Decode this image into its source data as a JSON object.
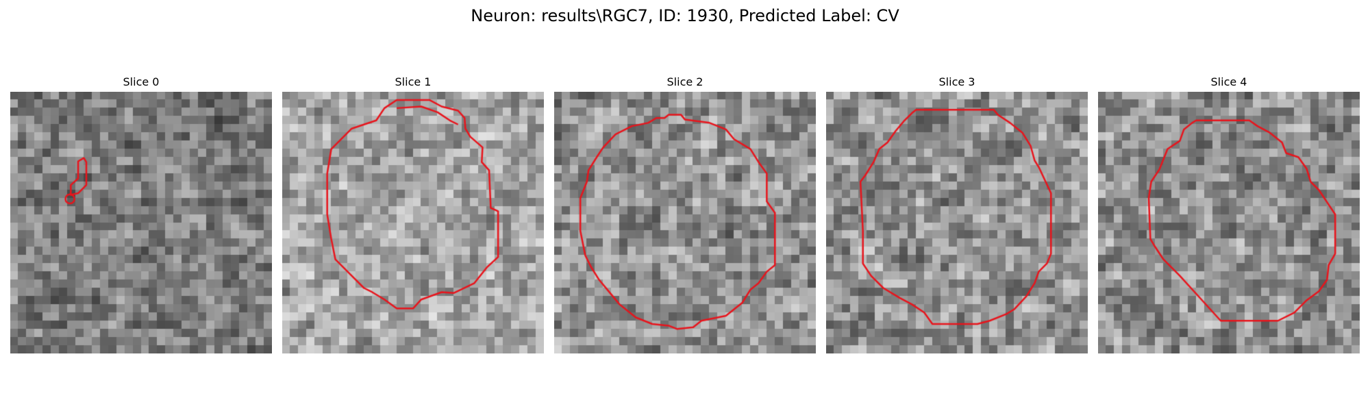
{
  "figure": {
    "title": "Neuron: results\\RGC7, ID: 1930, Predicted Label: CV",
    "outline_color": "#e8141c"
  },
  "slices": [
    {
      "title": "Slice 0",
      "tone": "dark",
      "seed": 11
    },
    {
      "title": "Slice 1",
      "tone": "light",
      "seed": 23
    },
    {
      "title": "Slice 2",
      "tone": "mid",
      "seed": 37
    },
    {
      "title": "Slice 3",
      "tone": "mid",
      "seed": 41
    },
    {
      "title": "Slice 4",
      "tone": "mid",
      "seed": 59
    }
  ]
}
